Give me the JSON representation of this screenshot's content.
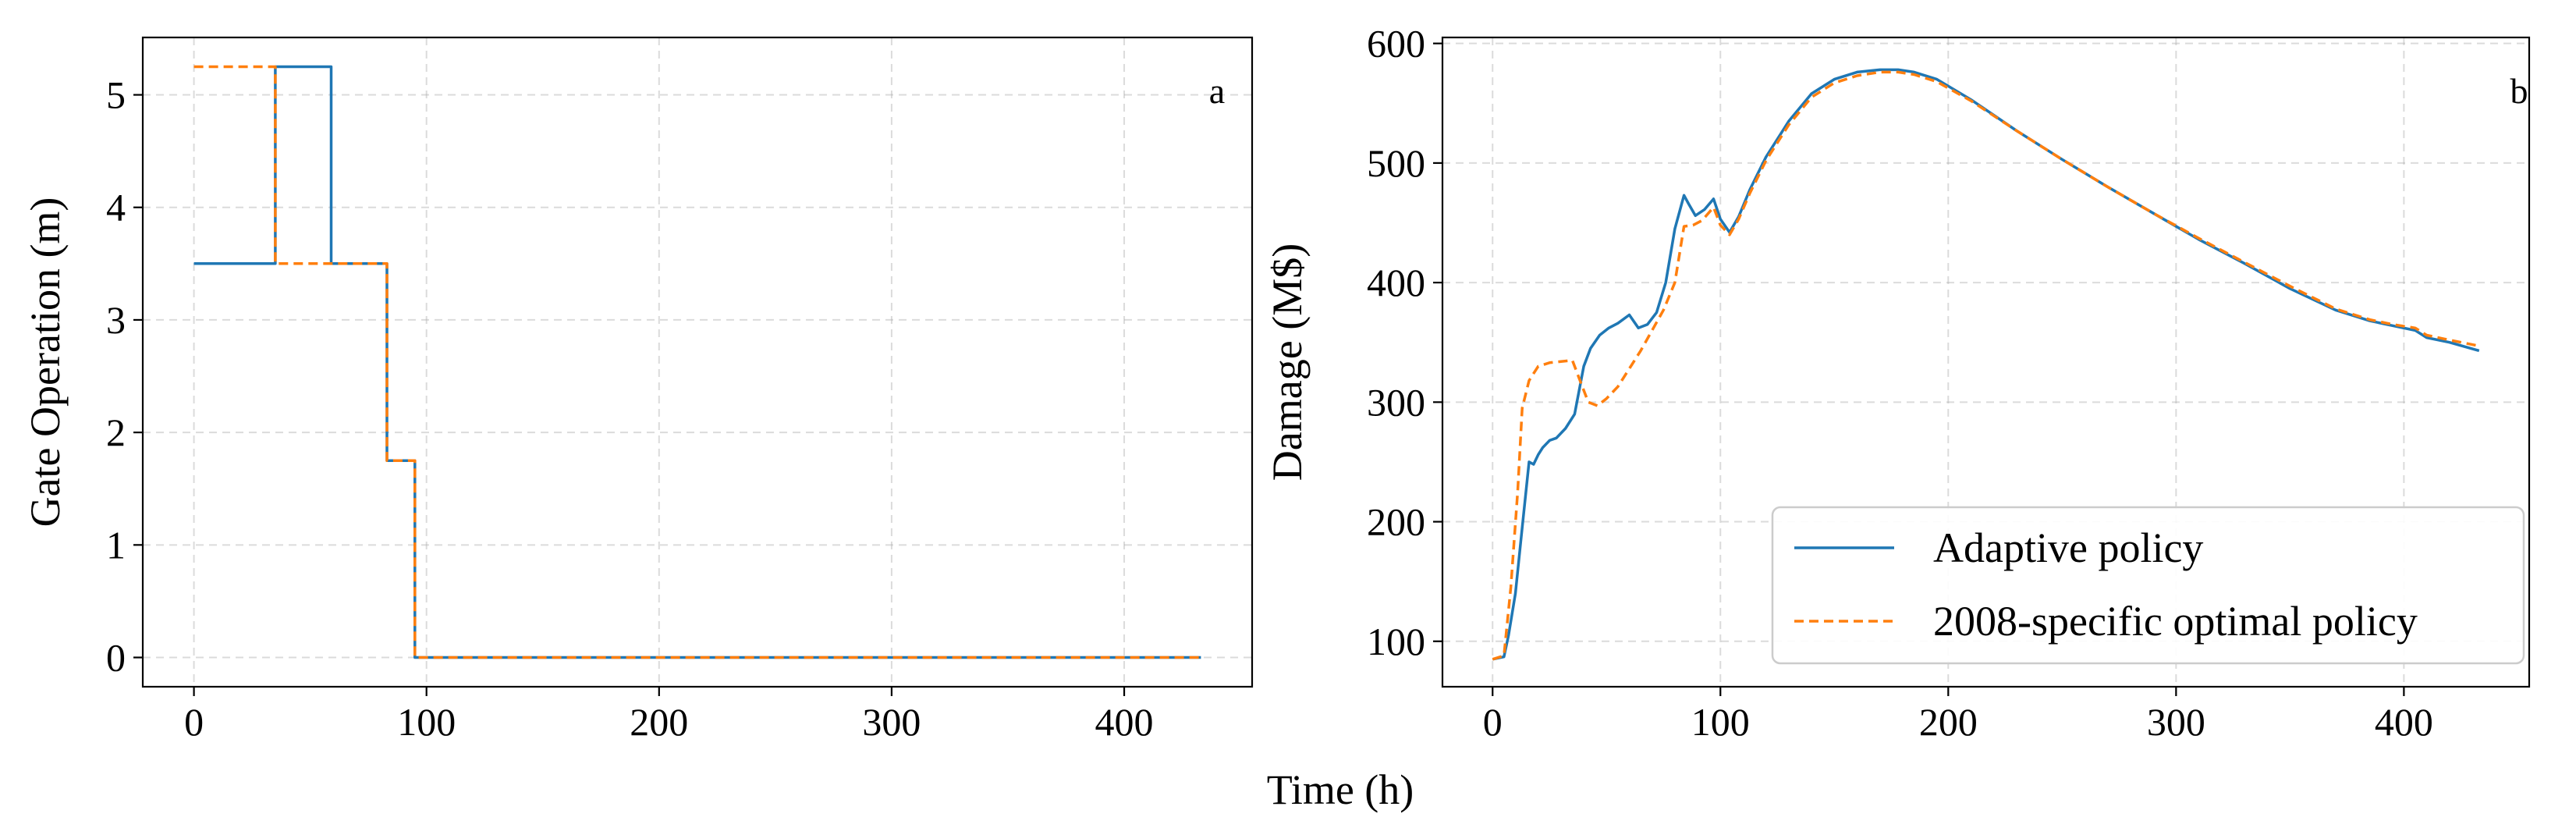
{
  "figure": {
    "shared_xlabel": "Time (h)"
  },
  "colors": {
    "adaptive": "#1f77b4",
    "specific": "#ff7f0e"
  },
  "legend": {
    "adaptive_label": "Adaptive policy",
    "specific_label": "2008-specific optimal policy"
  },
  "chart_data": [
    {
      "type": "line",
      "panel_label": "a",
      "title": "",
      "xlabel": "Time (h)",
      "ylabel": "Gate Operation (m)",
      "xlim": [
        -22,
        455
      ],
      "ylim": [
        -0.26,
        5.51
      ],
      "xticks": [
        0,
        100,
        200,
        300,
        400
      ],
      "yticks": [
        0,
        1,
        2,
        3,
        4,
        5
      ],
      "xtick_labels": [
        "0",
        "100",
        "200",
        "300",
        "400"
      ],
      "ytick_labels": [
        "0",
        "1",
        "2",
        "3",
        "4",
        "5"
      ],
      "grid": true,
      "series": [
        {
          "name": "Adaptive policy",
          "style": "solid",
          "x": [
            0,
            35,
            35,
            59,
            59,
            83,
            83,
            95,
            95,
            433
          ],
          "y": [
            3.5,
            3.5,
            5.25,
            5.25,
            3.5,
            3.5,
            1.75,
            1.75,
            0,
            0
          ]
        },
        {
          "name": "2008-specific optimal policy",
          "style": "dashed",
          "x": [
            0,
            35,
            35,
            83,
            83,
            95,
            95,
            433
          ],
          "y": [
            5.25,
            5.25,
            3.5,
            3.5,
            1.75,
            1.75,
            0,
            0
          ]
        }
      ]
    },
    {
      "type": "line",
      "panel_label": "b",
      "title": "",
      "xlabel": "Time (h)",
      "ylabel": "Damage (M$)",
      "xlim": [
        -22,
        455
      ],
      "ylim": [
        62,
        605
      ],
      "xticks": [
        0,
        100,
        200,
        300,
        400
      ],
      "yticks": [
        100,
        200,
        300,
        400,
        500,
        600
      ],
      "xtick_labels": [
        "0",
        "100",
        "200",
        "300",
        "400"
      ],
      "ytick_labels": [
        "100",
        "200",
        "300",
        "400",
        "500",
        "600"
      ],
      "grid": true,
      "legend_position": "lower-right",
      "series": [
        {
          "name": "Adaptive policy",
          "style": "solid",
          "x": [
            0,
            5,
            7,
            10,
            13,
            16,
            18,
            20,
            22,
            25,
            28,
            32,
            36,
            40,
            43,
            47,
            51,
            55,
            60,
            64,
            68,
            72,
            76,
            80,
            84,
            86,
            89,
            93,
            97,
            100,
            104,
            108,
            113,
            120,
            130,
            140,
            150,
            160,
            170,
            178,
            185,
            195,
            210,
            230,
            250,
            270,
            290,
            310,
            330,
            350,
            370,
            385,
            395,
            405,
            410,
            420,
            433
          ],
          "y": [
            85,
            87,
            105,
            140,
            195,
            250,
            248,
            256,
            262,
            268,
            270,
            278,
            290,
            330,
            345,
            356,
            362,
            366,
            373,
            362,
            365,
            375,
            400,
            445,
            473,
            466,
            456,
            461,
            470,
            453,
            442,
            455,
            478,
            505,
            535,
            558,
            570,
            576,
            578,
            578,
            576,
            570,
            553,
            527,
            503,
            480,
            458,
            436,
            416,
            395,
            377,
            368,
            364,
            360,
            354,
            350,
            343
          ]
        },
        {
          "name": "2008-specific optimal policy",
          "style": "dashed",
          "x": [
            0,
            5,
            8,
            11,
            13,
            16,
            20,
            25,
            30,
            35,
            38,
            42,
            46,
            50,
            55,
            60,
            65,
            70,
            75,
            80,
            84,
            88,
            92,
            97,
            100,
            104,
            108,
            113,
            120,
            130,
            140,
            150,
            160,
            170,
            178,
            185,
            195,
            210,
            230,
            250,
            270,
            290,
            310,
            330,
            350,
            370,
            385,
            395,
            405,
            410,
            420,
            433
          ],
          "y": [
            85,
            88,
            145,
            225,
            295,
            318,
            330,
            333,
            334,
            335,
            320,
            300,
            297,
            303,
            313,
            328,
            343,
            360,
            377,
            400,
            447,
            448,
            452,
            463,
            448,
            440,
            453,
            475,
            502,
            532,
            555,
            567,
            573,
            576,
            576,
            574,
            568,
            552,
            527,
            503,
            480,
            458,
            437,
            417,
            397,
            378,
            369,
            365,
            362,
            356,
            352,
            347
          ]
        }
      ]
    }
  ]
}
